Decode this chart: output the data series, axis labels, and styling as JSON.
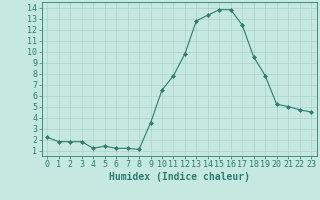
{
  "x": [
    0,
    1,
    2,
    3,
    4,
    5,
    6,
    7,
    8,
    9,
    10,
    11,
    12,
    13,
    14,
    15,
    16,
    17,
    18,
    19,
    20,
    21,
    22,
    23
  ],
  "y": [
    2.2,
    1.8,
    1.8,
    1.8,
    1.2,
    1.4,
    1.2,
    1.2,
    1.1,
    3.5,
    6.5,
    7.8,
    9.8,
    12.8,
    13.3,
    13.8,
    13.8,
    12.4,
    9.5,
    7.8,
    5.2,
    5.0,
    4.7,
    4.5
  ],
  "line_color": "#2e7d6e",
  "marker": "D",
  "marker_size": 2.0,
  "bg_color": "#c5e8e0",
  "grid_color": "#a8cdc5",
  "xlabel": "Humidex (Indice chaleur)",
  "ylim": [
    0.5,
    14.5
  ],
  "xlim": [
    -0.5,
    23.5
  ],
  "yticks": [
    1,
    2,
    3,
    4,
    5,
    6,
    7,
    8,
    9,
    10,
    11,
    12,
    13,
    14
  ],
  "xticks": [
    0,
    1,
    2,
    3,
    4,
    5,
    6,
    7,
    8,
    9,
    10,
    11,
    12,
    13,
    14,
    15,
    16,
    17,
    18,
    19,
    20,
    21,
    22,
    23
  ],
  "xtick_labels": [
    "0",
    "1",
    "2",
    "3",
    "4",
    "5",
    "6",
    "7",
    "8",
    "9",
    "10",
    "11",
    "12",
    "13",
    "14",
    "15",
    "16",
    "17",
    "18",
    "19",
    "20",
    "21",
    "22",
    "23"
  ],
  "tick_color": "#2e7d6e",
  "label_color": "#2e7d6e",
  "font_size": 6.0,
  "xlabel_fontsize": 7.0,
  "linewidth": 0.8
}
